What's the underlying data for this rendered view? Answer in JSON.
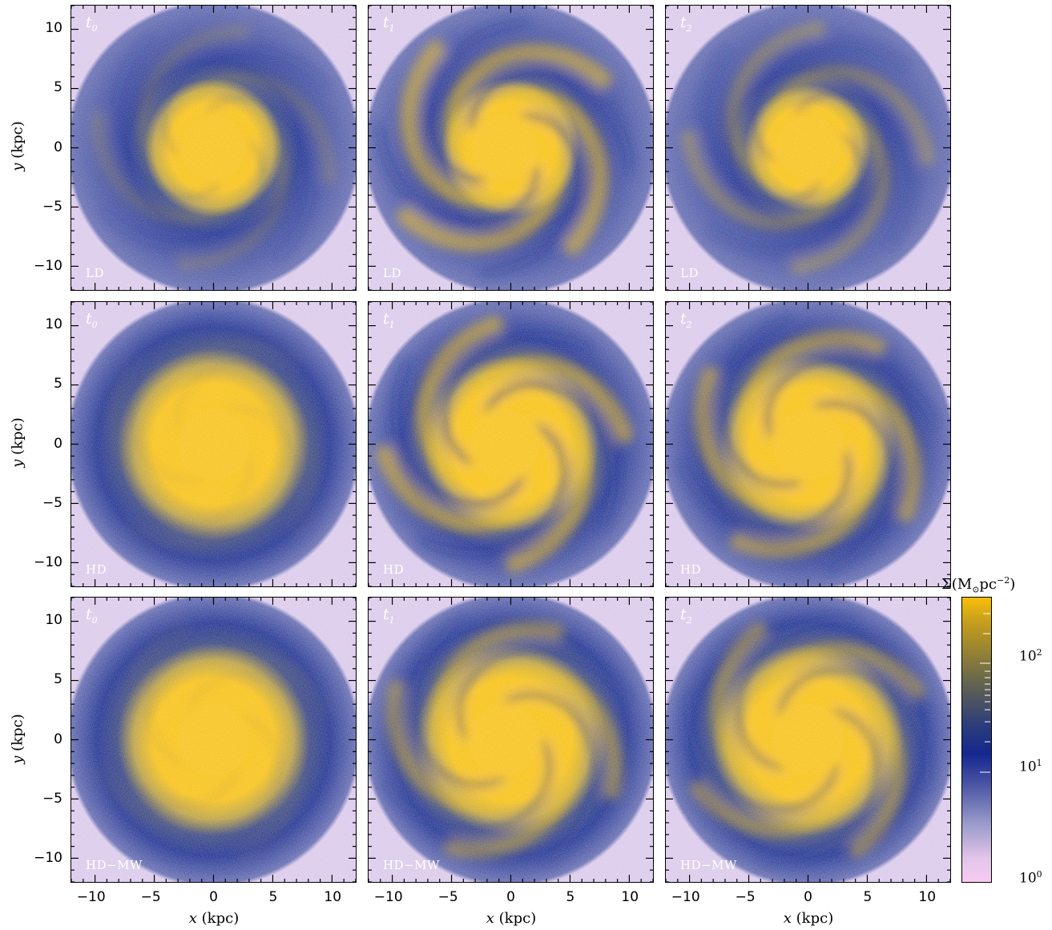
{
  "figure": {
    "colorbar": {
      "title_prefix": "Σ(M",
      "title_sub": "⊙",
      "title_mid": "pc",
      "title_sup": "−2",
      "title_suffix": ")",
      "ticks": [
        {
          "base": "10",
          "exp": "2"
        },
        {
          "base": "10",
          "exp": "1"
        },
        {
          "base": "10",
          "exp": "0"
        }
      ]
    },
    "axes": {
      "ylabel_var": "y",
      "ylabel_unit": " (kpc)",
      "xlabel_var": "x",
      "xlabel_unit": " (kpc)",
      "y_ticks": [
        "10",
        "5",
        "0",
        "−5",
        "−10"
      ],
      "x_ticks": [
        "−10",
        "−5",
        "0",
        "5",
        "10"
      ]
    },
    "panels": [
      {
        "time_base": "t",
        "time_sub": "0",
        "label": "LD",
        "spiral": 0.35,
        "core": 0.55
      },
      {
        "time_base": "t",
        "time_sub": "1",
        "label": "LD",
        "spiral": 1.0,
        "core": 0.55
      },
      {
        "time_base": "t",
        "time_sub": "2",
        "label": "LD",
        "spiral": 0.6,
        "core": 0.5
      },
      {
        "time_base": "t",
        "time_sub": "0",
        "label": "HD",
        "spiral": 0.1,
        "core": 0.75
      },
      {
        "time_base": "t",
        "time_sub": "1",
        "label": "HD",
        "spiral": 1.0,
        "core": 0.7
      },
      {
        "time_base": "t",
        "time_sub": "2",
        "label": "HD",
        "spiral": 0.9,
        "core": 0.7
      },
      {
        "time_base": "t",
        "time_sub": "0",
        "label": "HD−MW",
        "spiral": 0.1,
        "core": 0.75
      },
      {
        "time_base": "t",
        "time_sub": "1",
        "label": "HD−MW",
        "spiral": 0.8,
        "core": 0.75
      },
      {
        "time_base": "t",
        "time_sub": "2",
        "label": "HD−MW",
        "spiral": 0.8,
        "core": 0.75
      }
    ],
    "colors": {
      "gold": "#f7be08",
      "navy": "#14278c",
      "lavender": "#d8c6ea"
    }
  }
}
